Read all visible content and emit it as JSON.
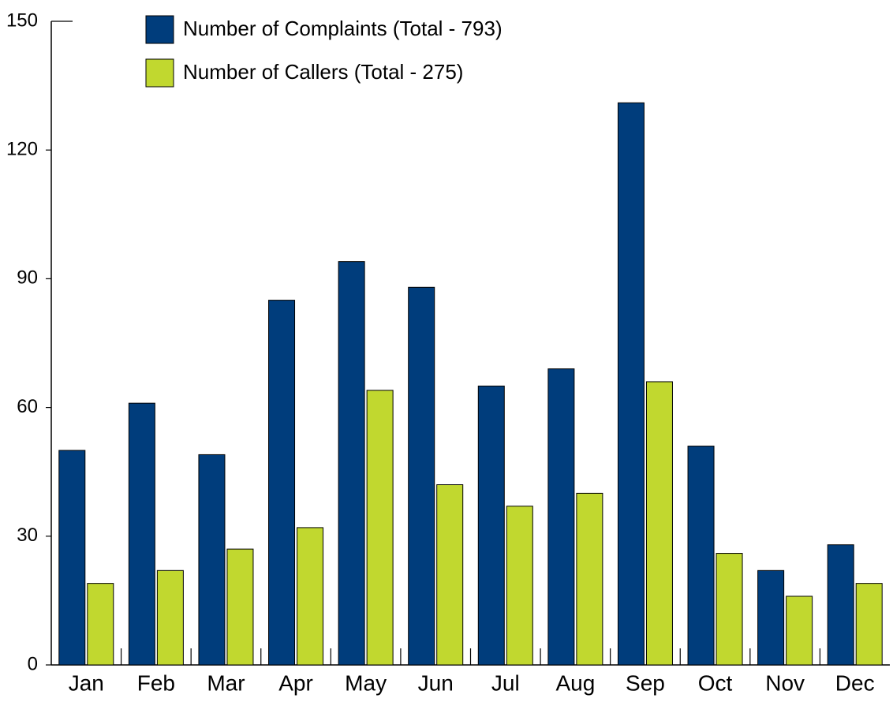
{
  "chart_data": {
    "type": "bar",
    "categories": [
      "Jan",
      "Feb",
      "Mar",
      "Apr",
      "May",
      "Jun",
      "Jul",
      "Aug",
      "Sep",
      "Oct",
      "Nov",
      "Dec"
    ],
    "series": [
      {
        "name": "Number of Complaints (Total - 793)",
        "color": "#003d7c",
        "values": [
          50,
          61,
          49,
          85,
          94,
          88,
          65,
          69,
          131,
          51,
          22,
          28
        ]
      },
      {
        "name": "Number of Callers (Total - 275)",
        "color": "#c1d82f",
        "values": [
          19,
          22,
          27,
          32,
          64,
          42,
          37,
          40,
          66,
          26,
          16,
          19
        ]
      }
    ],
    "ylim": [
      0,
      150
    ],
    "yticks": [
      0,
      30,
      60,
      90,
      120,
      150
    ],
    "grid": false,
    "legend": "top-left"
  }
}
